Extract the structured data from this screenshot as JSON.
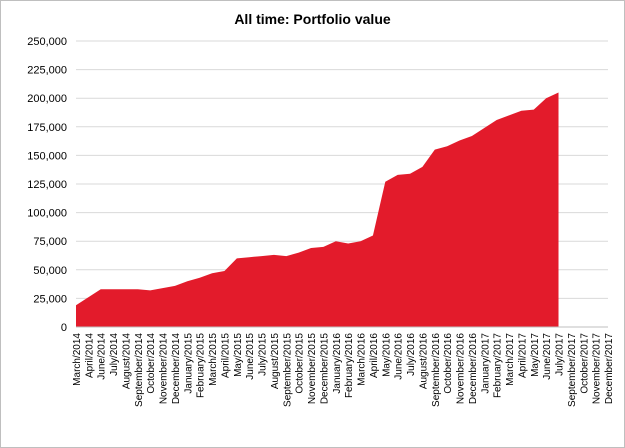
{
  "chart_data": {
    "type": "area",
    "title": "All time: Portfolio value",
    "xlabel": "",
    "ylabel": "",
    "ylim": [
      0,
      250000
    ],
    "yticks": [
      "0",
      "25,000",
      "50,000",
      "75,000",
      "100,000",
      "125,000",
      "150,000",
      "175,000",
      "200,000",
      "225,000",
      "250,000"
    ],
    "grid": true,
    "legend": "none",
    "color": "#e31b2b",
    "categories": [
      "March/2014",
      "April/2014",
      "June/2014",
      "July/2014",
      "August/2014",
      "September/2014",
      "October/2014",
      "November/2014",
      "December/2014",
      "January/2015",
      "February/2015",
      "March/2015",
      "April/2015",
      "May/2015",
      "June/2015",
      "July/2015",
      "August/2015",
      "September/2015",
      "October/2015",
      "November/2015",
      "December/2015",
      "January/2016",
      "February/2016",
      "March/2016",
      "April/2016",
      "May/2016",
      "June/2016",
      "July/2016",
      "August/2016",
      "September/2016",
      "October/2016",
      "November/2016",
      "December/2016",
      "January/2017",
      "February/2017",
      "March/2017",
      "April/2017",
      "May/2017",
      "June/2017",
      "July/2017",
      "September/2017",
      "October/2017",
      "November/2017",
      "December/2017"
    ],
    "series": [
      {
        "values": [
          19000,
          26000,
          33000,
          33000,
          33000,
          33000,
          32000,
          34000,
          36000,
          40000,
          43000,
          47000,
          49000,
          60000,
          61000,
          62000,
          63000,
          62000,
          65000,
          69000,
          70000,
          75000,
          73000,
          75000,
          80000,
          127000,
          133000,
          134000,
          140000,
          155000,
          158000,
          163000,
          167000,
          174000,
          181000,
          185000,
          189000,
          190000,
          200000,
          205000,
          null,
          null,
          null,
          null
        ]
      }
    ]
  }
}
